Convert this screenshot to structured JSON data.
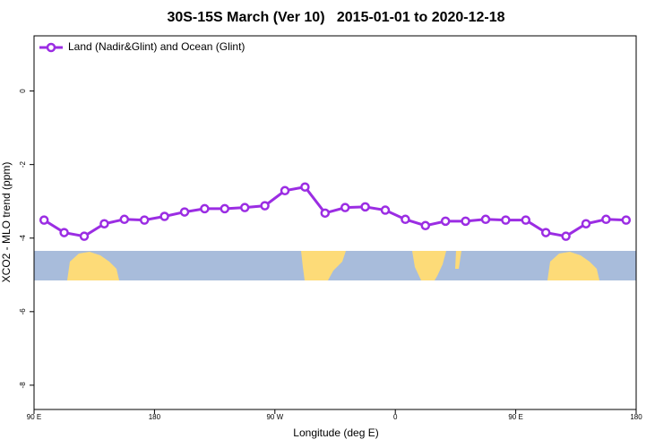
{
  "chart_data": {
    "type": "line",
    "title": "30S-15S March (Ver 10)   2015-01-01 to 2020-12-18",
    "xlabel": "Longitude (deg E)",
    "ylabel": "XCO2 - MLO trend (ppm)",
    "x": [
      97.5,
      112.5,
      127.5,
      142.5,
      157.5,
      172.5,
      187.5,
      202.5,
      217.5,
      232.5,
      247.5,
      262.5,
      277.5,
      292.5,
      307.5,
      322.5,
      337.5,
      352.5,
      367.5,
      382.5,
      397.5,
      412.5,
      427.5,
      442.5,
      457.5,
      472.5,
      487.5,
      502.5,
      517.5,
      532.5
    ],
    "series": [
      {
        "name": "Land (Nadir&Glint) and Ocean (Glint)",
        "color": "#9b2de3",
        "values": [
          -3.51,
          -3.85,
          -3.95,
          -3.61,
          -3.49,
          -3.51,
          -3.41,
          -3.29,
          -3.2,
          -3.2,
          -3.17,
          -3.12,
          -2.71,
          -2.61,
          -3.32,
          -3.17,
          -3.15,
          -3.24,
          -3.49,
          -3.66,
          -3.54,
          -3.54,
          -3.49,
          -3.51,
          -3.51,
          -3.85,
          -3.95,
          -3.61,
          -3.49,
          -3.51
        ]
      }
    ],
    "xlim": [
      90,
      540
    ],
    "xticks": [
      {
        "value": 90,
        "label": "90 E"
      },
      180,
      {
        "value": 270,
        "label": "90 W"
      },
      {
        "value": 360,
        "label": "0"
      },
      {
        "value": 450,
        "label": "90 E"
      },
      {
        "value": 540,
        "label": "180"
      }
    ],
    "ylim": [
      -8.66,
      1.5
    ],
    "yticks": [
      0,
      -2,
      -4,
      -6,
      -8
    ],
    "legend": "top-left",
    "grid": false
  }
}
